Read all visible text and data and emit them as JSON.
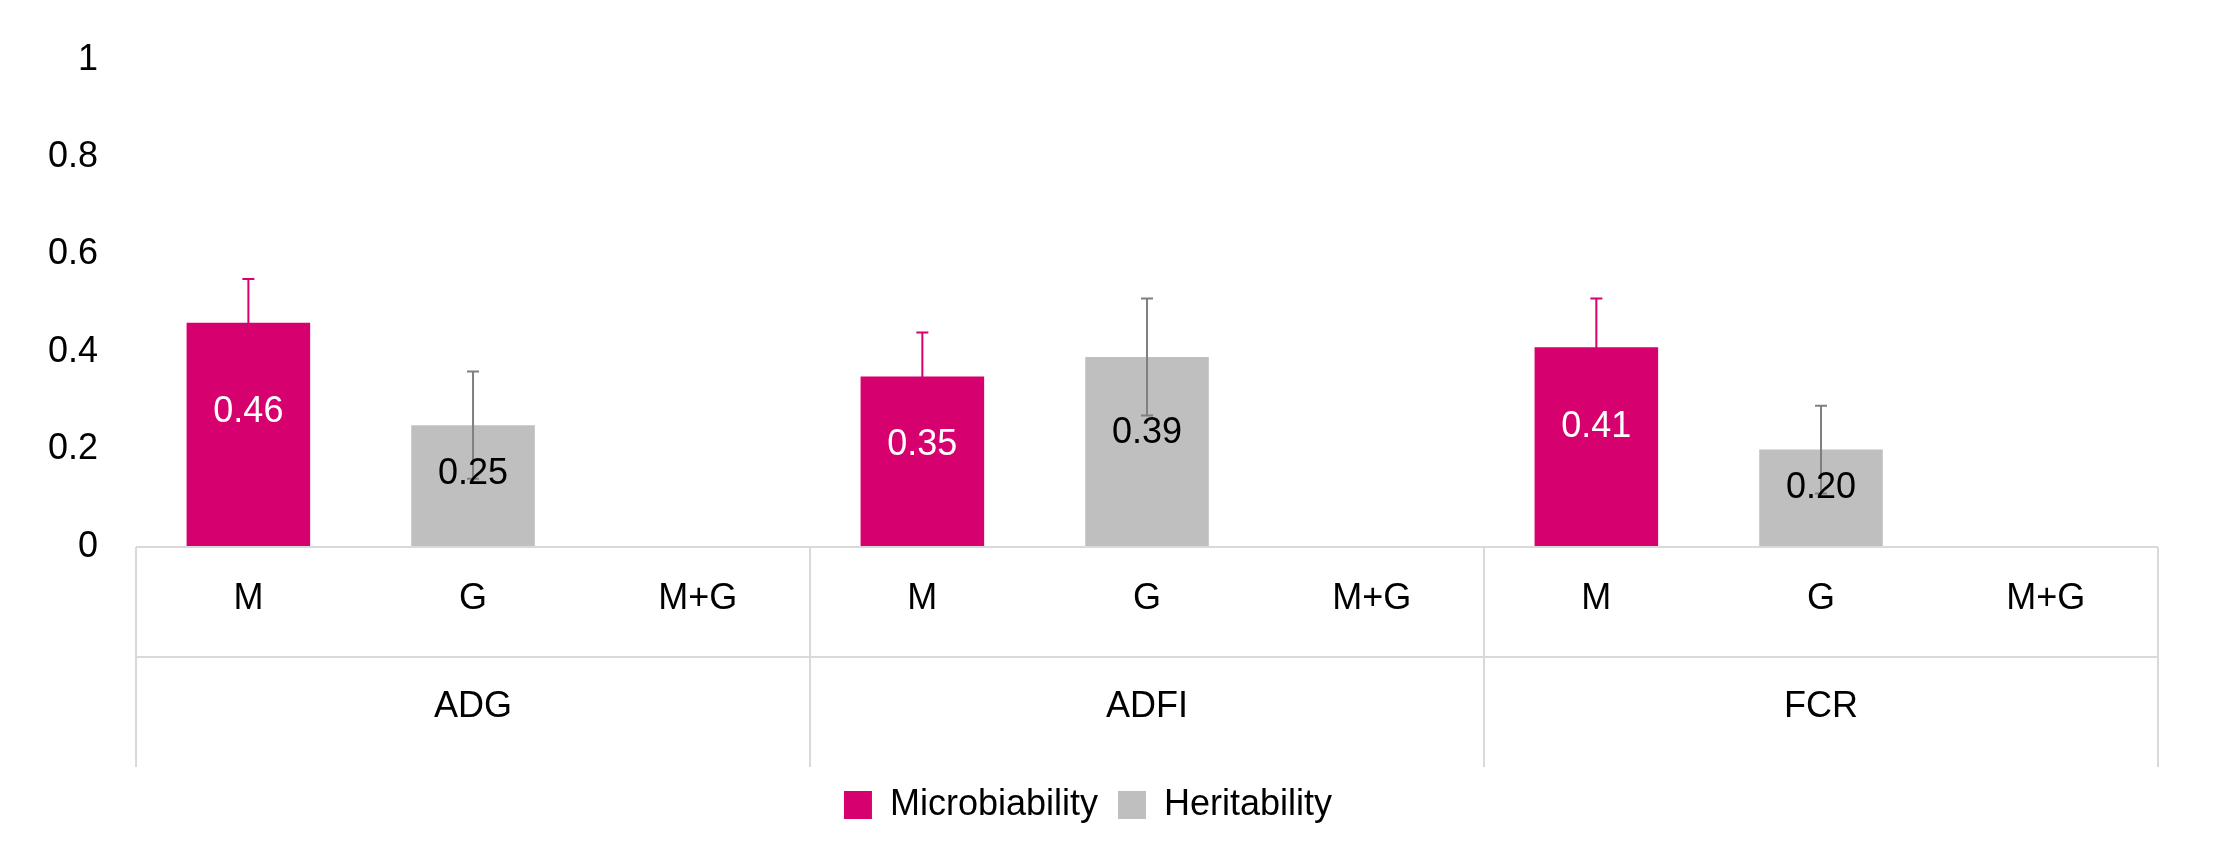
{
  "chart_data": {
    "type": "bar",
    "stacked": true,
    "categories": [
      "M",
      "G",
      "M+G",
      "M",
      "G",
      "M+G",
      "M",
      "G",
      "M+G"
    ],
    "series": [
      {
        "name": "Microbiability",
        "color": "#d6006f",
        "values": [
          0.46,
          null,
          0,
          0.35,
          null,
          0,
          0.41,
          null,
          0
        ],
        "errors": [
          0.09,
          null,
          null,
          0.09,
          null,
          null,
          0.1,
          null,
          null
        ],
        "value_labels": [
          "0.46",
          null,
          null,
          "0.35",
          null,
          null,
          "0.41",
          null,
          null
        ]
      },
      {
        "name": "Heritability",
        "color": "#bfbfbf",
        "values": [
          null,
          0.25,
          0,
          null,
          0.39,
          0,
          null,
          0.2,
          0
        ],
        "errors": [
          null,
          0.11,
          null,
          null,
          0.12,
          null,
          null,
          0.09,
          null
        ],
        "value_labels": [
          null,
          "0.25",
          null,
          null,
          "0.39",
          null,
          null,
          "0.20",
          null
        ]
      }
    ],
    "annotations": [
      "ADG",
      "ADFI",
      "FCR"
    ],
    "ylim": [
      0,
      1
    ],
    "yticks": [
      0,
      0.2,
      0.4,
      0.6,
      0.8,
      1
    ],
    "grid": false,
    "legend": "bottom"
  }
}
